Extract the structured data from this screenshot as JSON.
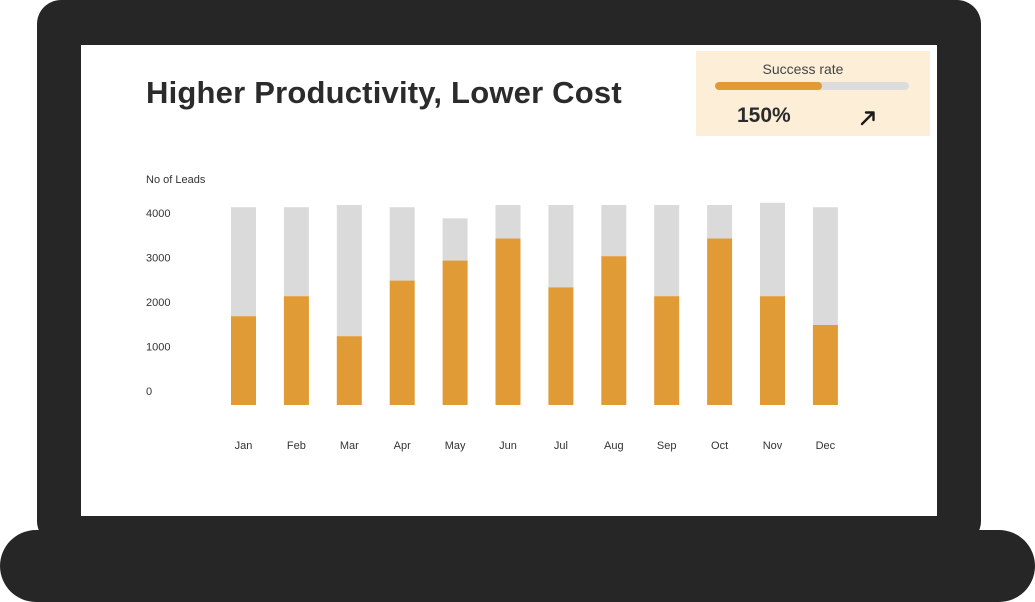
{
  "title": "Higher Productivity, Lower Cost",
  "kpi": {
    "label": "Success rate",
    "value_text": "150%",
    "bar_fraction": 0.55,
    "trend_icon": "arrow-up-right-icon"
  },
  "colors": {
    "device": "#262626",
    "bar_value": "#e09b36",
    "bar_track": "#dadada",
    "kpi_bg": "#fdeed8"
  },
  "chart_data": {
    "type": "bar",
    "stacked": true,
    "title": "Higher Productivity, Lower Cost",
    "ylabel": "No of Leads",
    "xlabel": "",
    "categories": [
      "Jan",
      "Feb",
      "Mar",
      "Apr",
      "May",
      "Jun",
      "Jul",
      "Aug",
      "Sep",
      "Oct",
      "Nov",
      "Dec"
    ],
    "series": [
      {
        "values": [
          2000,
          2450,
          1550,
          2800,
          3250,
          3750,
          2650,
          3350,
          2450,
          3750,
          2450,
          1800
        ]
      },
      {
        "values": [
          2450,
          2000,
          2950,
          1650,
          950,
          750,
          1850,
          1150,
          2050,
          750,
          2100,
          2650
        ]
      }
    ],
    "y_ticks": [
      0,
      1000,
      2000,
      3000,
      4000
    ],
    "ylim": [
      0,
      4500
    ],
    "grid": false,
    "legend": "none"
  }
}
